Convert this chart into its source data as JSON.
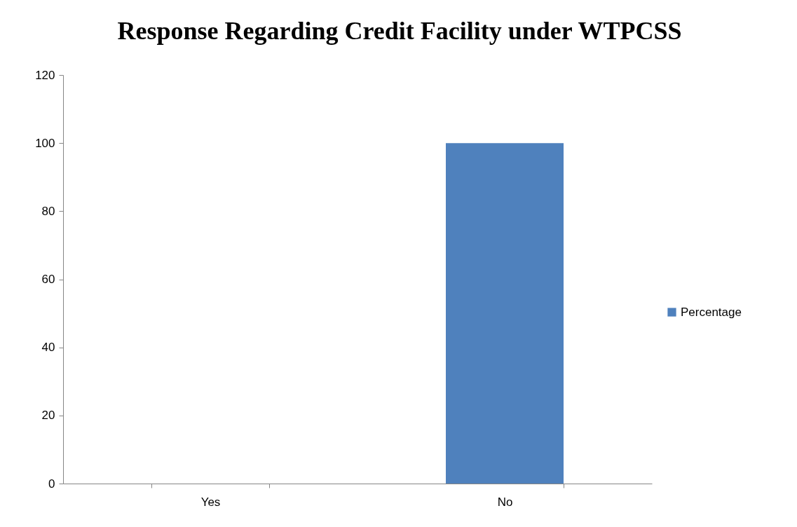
{
  "chart_data": {
    "type": "bar",
    "title": "Response Regarding Credit Facility under WTPCSS",
    "categories": [
      "Yes",
      "No"
    ],
    "series": [
      {
        "name": "Percentage",
        "color": "#4f81bd",
        "values": [
          0,
          100
        ]
      }
    ],
    "ylim": [
      0,
      120
    ],
    "yticks": [
      0,
      20,
      40,
      60,
      80,
      100,
      120
    ],
    "grid": false,
    "legend": "right"
  }
}
